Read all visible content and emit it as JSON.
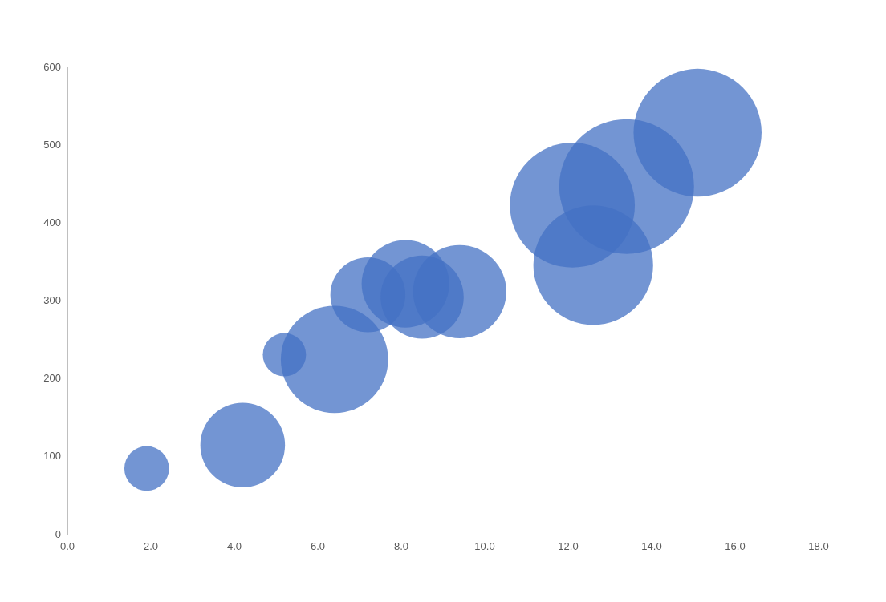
{
  "chart_data": {
    "type": "bubble",
    "x": [
      1.9,
      4.2,
      5.2,
      6.4,
      7.2,
      8.1,
      8.5,
      9.4,
      12.1,
      12.6,
      13.4,
      15.1
    ],
    "values": [
      85,
      115,
      231,
      225,
      308,
      322,
      305,
      312,
      423,
      346,
      447,
      516
    ],
    "sizes": [
      7.8,
      28,
      7.3,
      45,
      22,
      30,
      27,
      34,
      61,
      56,
      71,
      64
    ],
    "color": "#4472c4",
    "xlim": [
      0,
      18
    ],
    "xticks": [
      {
        "value": 0,
        "label": "0.0"
      },
      {
        "value": 2,
        "label": "2.0"
      },
      {
        "value": 4,
        "label": "4.0"
      },
      {
        "value": 6,
        "label": "6.0"
      },
      {
        "value": 8,
        "label": "8.0"
      },
      {
        "value": 10,
        "label": "10.0"
      },
      {
        "value": 12,
        "label": "12.0"
      },
      {
        "value": 14,
        "label": "14.0"
      },
      {
        "value": 16,
        "label": "16.0"
      },
      {
        "value": 18,
        "label": "18.0"
      }
    ],
    "ylim": [
      0,
      600
    ],
    "yticks": [
      0,
      100,
      200,
      300,
      400,
      500,
      600
    ],
    "grid": false
  }
}
